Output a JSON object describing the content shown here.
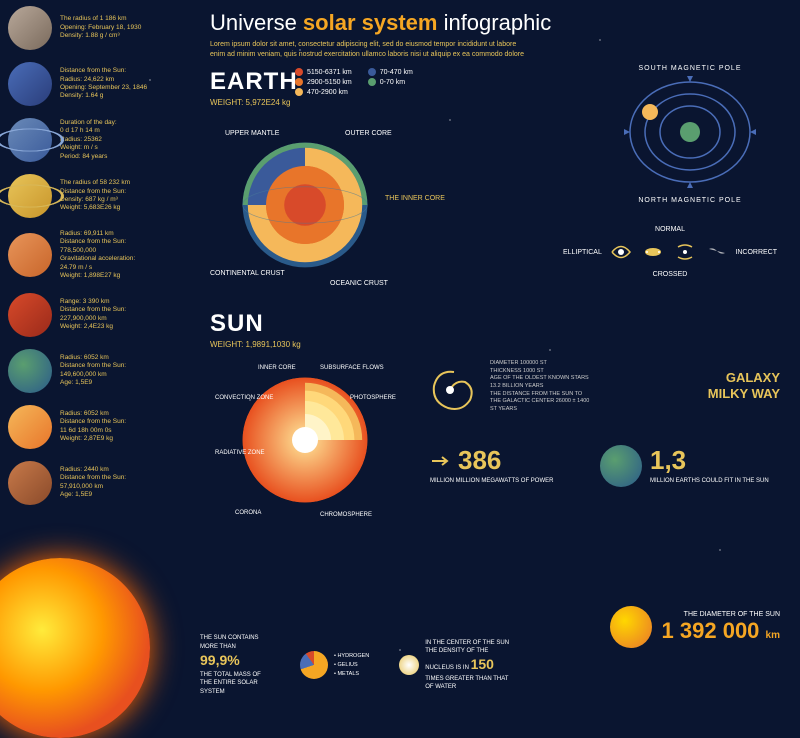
{
  "title": {
    "pre": "Universe ",
    "hl": "solar system",
    "post": " infographic"
  },
  "subtitle": "Lorem ipsum dolor sit amet, consectetur adipiscing elit, sed do eiusmod tempor incididunt ut labore enim ad minim veniam, quis nostrud exercitation ullamco laboris nisi ut aliquip ex ea commodo dolore",
  "planets": [
    {
      "color": "linear-gradient(135deg,#b8a89a,#7a6a5c)",
      "info": "The radius of 1 186 km\nOpening: February 18, 1930\nDensity: 1.88 g / cm³"
    },
    {
      "color": "linear-gradient(135deg,#4a6db8,#2a3d7a)",
      "info": "Distance from the Sun:\nRadius: 24,622 km\nOpening: September 23, 1846\nDensity: 1.64 g"
    },
    {
      "color": "linear-gradient(135deg,#6a8ab8,#3a5a9a)",
      "ring": "#8aa8d8",
      "info": "Duration of the day:\n0 d 17 h 14 m\nRadius: 25362\nWeight: m / s\nPeriod: 84 years"
    },
    {
      "color": "linear-gradient(135deg,#e8c55a,#c8952a)",
      "ring": "#d8b858",
      "info": "The radius of 58 232 km\nDistance from the Sun:\nDensity: 687 kg / m³\nWeight: 5,683E26 kg"
    },
    {
      "color": "linear-gradient(135deg,#e8955a,#c8652a)",
      "info": "Radius: 69,911 km\nDistance from the Sun:\n778,500,000\nGravitational acceleration:\n24.79 m / s\nWeight: 1,898E27 kg"
    },
    {
      "color": "linear-gradient(135deg,#d84a2a,#9a2a1a)",
      "info": "Range: 3 390 km\nDistance from the Sun:\n227,900,000 km\nWeight: 2,4E23 kg"
    },
    {
      "color": "radial-gradient(circle at 35% 35%,#5a9e6f,#2a5a8a)",
      "info": "Radius: 6052 km\nDistance from the Sun:\n149,600,000 km\nAge: 1,5E9"
    },
    {
      "color": "linear-gradient(135deg,#f5b85a,#e8752a)",
      "info": "Radius: 6052 km\nDistance from the Sun:\n11 6d 18h 00m 0s\nWeight: 2,87E9 kg"
    },
    {
      "color": "linear-gradient(135deg,#c87a4a,#8a4a2a)",
      "info": "Radius: 2440 km\nDistance from the Sun:\n57,910,000 km\nAge: 1,5E9"
    }
  ],
  "earth": {
    "title": "EARTH",
    "weight": "WEIGHT: 5,972E24 kg"
  },
  "legend": [
    {
      "c": "#d84a2a",
      "t": "5150-6371 km"
    },
    {
      "c": "#3a5a9a",
      "t": "70-470 km"
    },
    {
      "c": "#e8752a",
      "t": "2900-5150 km"
    },
    {
      "c": "#5a9e6f",
      "t": "0-70 km"
    },
    {
      "c": "#f5b85a",
      "t": "470-2900 km"
    }
  ],
  "earthLabels": {
    "upper": "UPPER MANTLE",
    "outer": "OUTER CORE",
    "inner": "THE INNER CORE",
    "cont": "CONTINENTAL CRUST",
    "ocean": "OCEANIC CRUST"
  },
  "magPole": {
    "south": "SOUTH MAGNETIC POLE",
    "north": "NORTH MAGNETIC POLE"
  },
  "galaxyTypes": {
    "normal": "NORMAL",
    "elliptical": "ELLIPTICAL",
    "incorrect": "INCORRECT",
    "crossed": "CROSSED"
  },
  "sun": {
    "title": "SUN",
    "weight": "WEIGHT: 1,9891,1030 kg"
  },
  "sunLabels": {
    "inner": "INNER CORE",
    "conv": "CONVECTION ZONE",
    "rad": "RADIATIVE ZONE",
    "corona": "CORONA",
    "sub": "SUBSURFACE FLOWS",
    "photo": "PHOTOSPHERE",
    "chromo": "CHROMOSPHERE"
  },
  "spiralTxt": "DIAMETER 100000 ST\nTHICKNESS 1000 ST\nAGE OF THE OLDEST KNOWN STARS 13.2 BILLION YEARS\nTHE DISTANCE FROM THE SUN TO THE GALACTIC CENTER 26000 ± 1400 ST YEARS",
  "milky": {
    "a": "GALAXY",
    "b": "MILKY WAY"
  },
  "stat386": {
    "num": "386",
    "sub": "MILLION MILLION MEGAWATTS OF POWER"
  },
  "stat13": {
    "num": "1,3",
    "sub": "MILLION EARTHS COULD FIT IN THE SUN"
  },
  "diameter": {
    "lbl": "THE DIAMETER OF THE SUN",
    "num": "1 392 000",
    "unit": "km"
  },
  "bottom": {
    "s99": {
      "pre": "THE SUN CONTAINS MORE THAN",
      "num": "99,9%",
      "post": "THE TOTAL MASS OF THE ENTIRE SOLAR SYSTEM"
    },
    "pie": [
      "HYDROGEN",
      "GELIUS",
      "METALS"
    ],
    "s150": {
      "pre": "IN THE CENTER OF THE SUN THE DENSITY OF THE NUCLEUS IS IN",
      "num": "150",
      "post": "TIMES GREATER THAN THAT OF WATER"
    }
  },
  "colors": {
    "bg": "#0a1530",
    "accent": "#e8c55a",
    "orange": "#f5a623"
  }
}
